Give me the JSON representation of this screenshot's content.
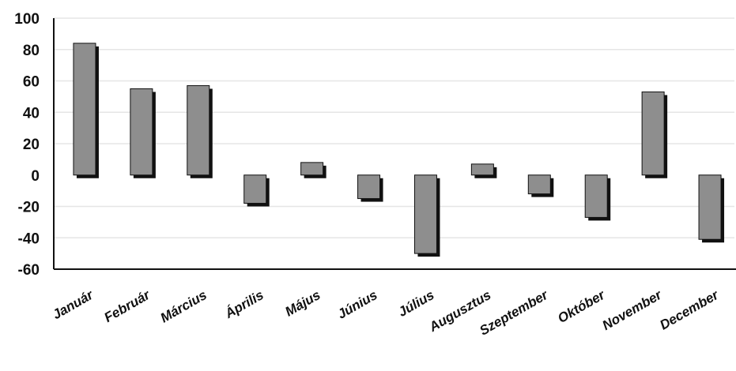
{
  "chart_data": {
    "type": "bar",
    "title": "",
    "xlabel": "",
    "ylabel": "",
    "categories": [
      "Január",
      "Február",
      "Március",
      "Április",
      "Május",
      "Június",
      "Július",
      "Augusztus",
      "Szeptember",
      "Október",
      "November",
      "December"
    ],
    "values": [
      84,
      55,
      57,
      -18,
      8,
      -15,
      -50,
      7,
      -12,
      -27,
      53,
      -41
    ],
    "ylim": [
      -60,
      100
    ],
    "yticks": [
      "100",
      "80",
      "60",
      "40",
      "20",
      "0",
      "-20",
      "-40",
      "-60"
    ],
    "grid": true,
    "legend": "none",
    "colors": {
      "bar_fill": "#8e8e8e",
      "bar_shadow": "#111111",
      "grid": "#e6e6e6",
      "axis": "#111111"
    }
  }
}
